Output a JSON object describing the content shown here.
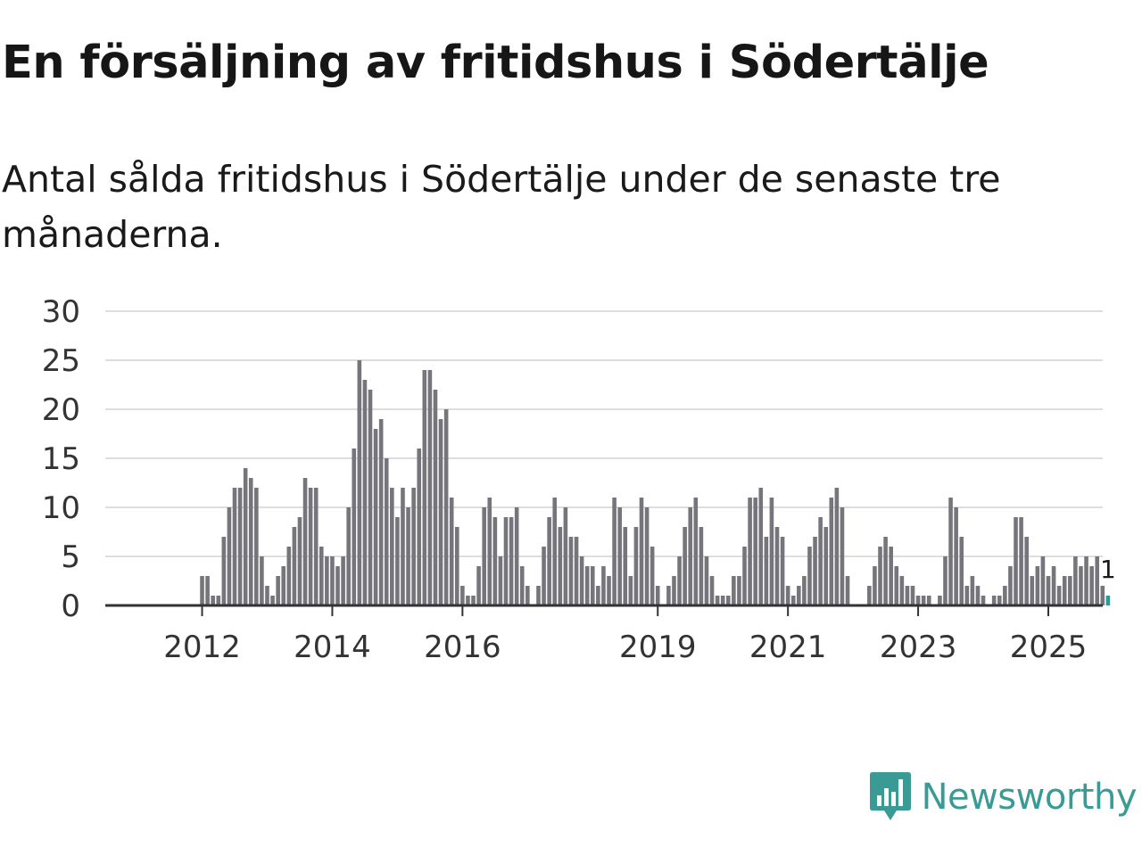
{
  "title": "En försäljning av fritidshus i Södertälje",
  "subtitle": "Antal sålda fritidshus i Södertälje under de senaste tre månaderna.",
  "brand": {
    "name": "Newsworthy",
    "logo_icon": "newsworthy-bar-chart-badge-icon"
  },
  "colors": {
    "bar": "#76757b",
    "highlight": "#2a9d9a",
    "grid": "#dddddd",
    "axis": "#333333",
    "brand": "#3a9a94"
  },
  "chart_data": {
    "type": "bar",
    "title": "En försäljning av fritidshus i Södertälje",
    "xlabel": "",
    "ylabel": "",
    "ylim": [
      0,
      30
    ],
    "yticks": [
      "0",
      "5",
      "10",
      "15",
      "20",
      "25",
      "30"
    ],
    "xticks": [
      "2012",
      "2014",
      "2016",
      "2019",
      "2021",
      "2023",
      "2025"
    ],
    "xtick_month_index": [
      9,
      33,
      57,
      93,
      117,
      141,
      165
    ],
    "start_month": "2011-04",
    "grid": true,
    "highlight_last": true,
    "last_value_label": "1",
    "values": [
      0,
      0,
      0,
      0,
      0,
      0,
      0,
      0,
      0,
      3,
      3,
      1,
      1,
      7,
      10,
      12,
      12,
      14,
      13,
      12,
      5,
      2,
      1,
      3,
      4,
      6,
      8,
      9,
      13,
      12,
      12,
      6,
      5,
      5,
      4,
      5,
      10,
      16,
      25,
      23,
      22,
      18,
      19,
      15,
      12,
      9,
      12,
      10,
      12,
      16,
      24,
      24,
      22,
      19,
      20,
      11,
      8,
      2,
      1,
      1,
      4,
      10,
      11,
      9,
      5,
      9,
      9,
      10,
      4,
      2,
      0,
      2,
      6,
      9,
      11,
      8,
      10,
      7,
      7,
      5,
      4,
      4,
      2,
      4,
      3,
      11,
      10,
      8,
      3,
      8,
      11,
      10,
      6,
      2,
      0,
      2,
      3,
      5,
      8,
      10,
      11,
      8,
      5,
      3,
      1,
      1,
      1,
      3,
      3,
      6,
      11,
      11,
      12,
      7,
      11,
      8,
      7,
      2,
      1,
      2,
      3,
      6,
      7,
      9,
      8,
      11,
      12,
      10,
      3,
      0,
      0,
      0,
      2,
      4,
      6,
      7,
      6,
      4,
      3,
      2,
      2,
      1,
      1,
      1,
      0,
      1,
      5,
      11,
      10,
      7,
      2,
      3,
      2,
      1,
      0,
      1,
      1,
      2,
      4,
      9,
      9,
      7,
      3,
      4,
      5,
      3,
      4,
      2,
      3,
      3,
      5,
      4,
      5,
      4,
      5,
      2,
      1
    ]
  }
}
